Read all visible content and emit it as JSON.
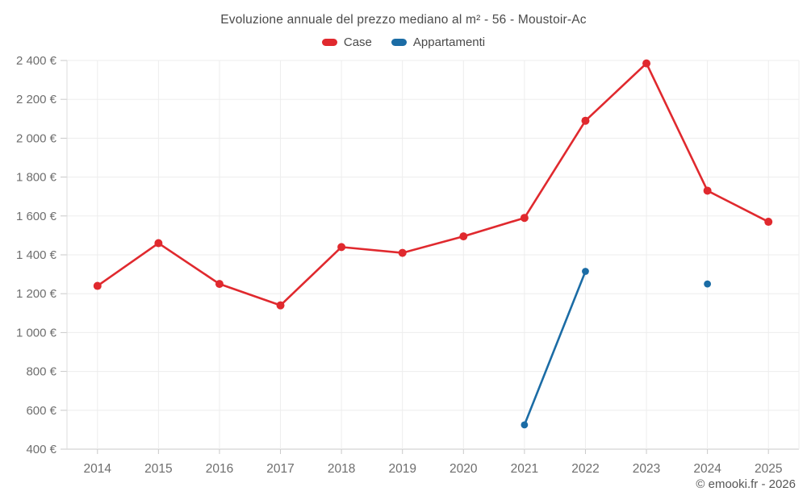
{
  "header": {
    "title": "Evoluzione annuale del prezzo mediano al m² - 56 - Moustoir-Ac"
  },
  "footer": {
    "credit": "© emooki.fr - 2026"
  },
  "colors": {
    "case_red": "#e0292e",
    "appartamenti_blue": "#1b6ca5",
    "grid": "#ededed",
    "axis": "#c9c9c9",
    "tick_label": "#6e6e6e",
    "title_text": "#4a4a4a",
    "background": "#ffffff"
  },
  "chart_data": {
    "type": "line",
    "title": "Evoluzione annuale del prezzo mediano al m² - 56 - Moustoir-Ac",
    "categories": [
      "2014",
      "2015",
      "2016",
      "2017",
      "2018",
      "2019",
      "2020",
      "2021",
      "2022",
      "2023",
      "2024",
      "2025"
    ],
    "series": [
      {
        "name": "Case",
        "color": "#e0292e",
        "values": [
          1240,
          1460,
          1250,
          1140,
          1440,
          1410,
          1495,
          1590,
          2090,
          2385,
          1730,
          1570
        ]
      },
      {
        "name": "Appartamenti",
        "color": "#1b6ca5",
        "values": [
          null,
          null,
          null,
          null,
          null,
          null,
          null,
          525,
          1315,
          null,
          1250,
          null
        ]
      }
    ],
    "xlabel": "",
    "ylabel": "",
    "ylim": [
      400,
      2400
    ],
    "ytick_step": 200,
    "ytick_suffix": " €",
    "grid": true,
    "legend_position": "top"
  }
}
